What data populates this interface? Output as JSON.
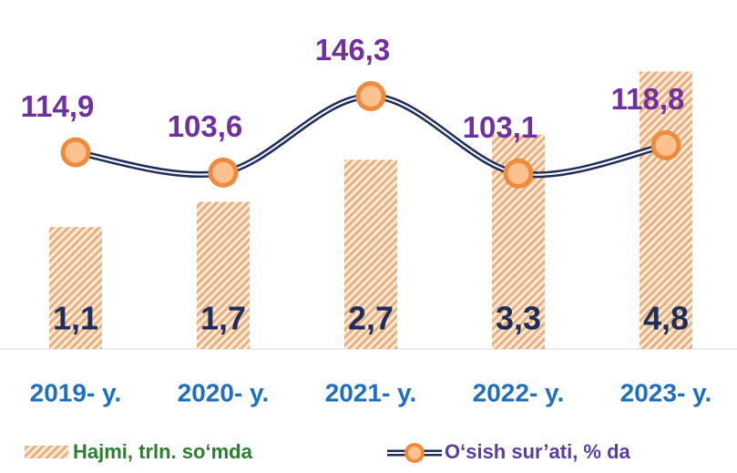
{
  "chart_data": {
    "type": "bar",
    "categories": [
      "2019- y.",
      "2020- y.",
      "2021- y.",
      "2022- y.",
      "2023- y."
    ],
    "series": [
      {
        "name": "Hajmi, trln. so‘mda",
        "type": "bar",
        "color": "#e8a66a",
        "values": [
          1.1,
          1.7,
          2.7,
          3.3,
          4.8
        ],
        "value_labels": [
          "1,1",
          "1,7",
          "2,7",
          "3,3",
          "4,8"
        ]
      },
      {
        "name": "O‘sish sur’ati, % da",
        "type": "line",
        "axis": "y2",
        "color": "#1f2d5a",
        "marker_color": "#f08a3c",
        "values": [
          114.9,
          103.6,
          146.3,
          103.1,
          118.8
        ],
        "value_labels": [
          "114,9",
          "103,6",
          "146,3",
          "103,1",
          "118,8"
        ]
      }
    ],
    "ylim": [
      -1.8,
      6.5
    ],
    "y2lim": [
      5,
      200
    ]
  }
}
